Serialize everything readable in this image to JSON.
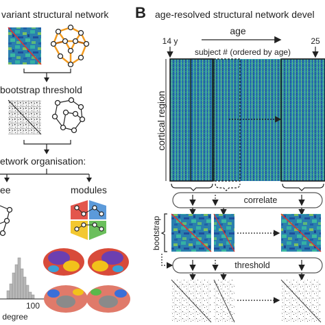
{
  "panel_a": {
    "title": "variant structural network",
    "bootstrap": "bootstrap threshold",
    "organisation": "etwork organisation:",
    "degree_header": "ee",
    "modules_header": "modules",
    "hist_tick": "100",
    "hist_xlabel": "degree"
  },
  "panel_b": {
    "letter": "B",
    "title": "age-resolved structural network devel",
    "age_label": "age",
    "age_start": "14 y",
    "age_end": "25",
    "subject_label": "subject # (ordered by age)",
    "cortical_label": "cortical region",
    "correlate_label": "correlate",
    "bootstrap_label": "bootstrap",
    "threshold_label": "threshold"
  },
  "colors": {
    "heat_low": "#1f4e9c",
    "heat_mid": "#2aa3a8",
    "heat_high": "#8fd14f",
    "diag": "#e8302a",
    "net_orange": "#f29a1f",
    "module_red": "#e0443a",
    "module_blue": "#4a8fd6",
    "module_green": "#5bb84a",
    "module_yellow": "#f2c21b"
  }
}
